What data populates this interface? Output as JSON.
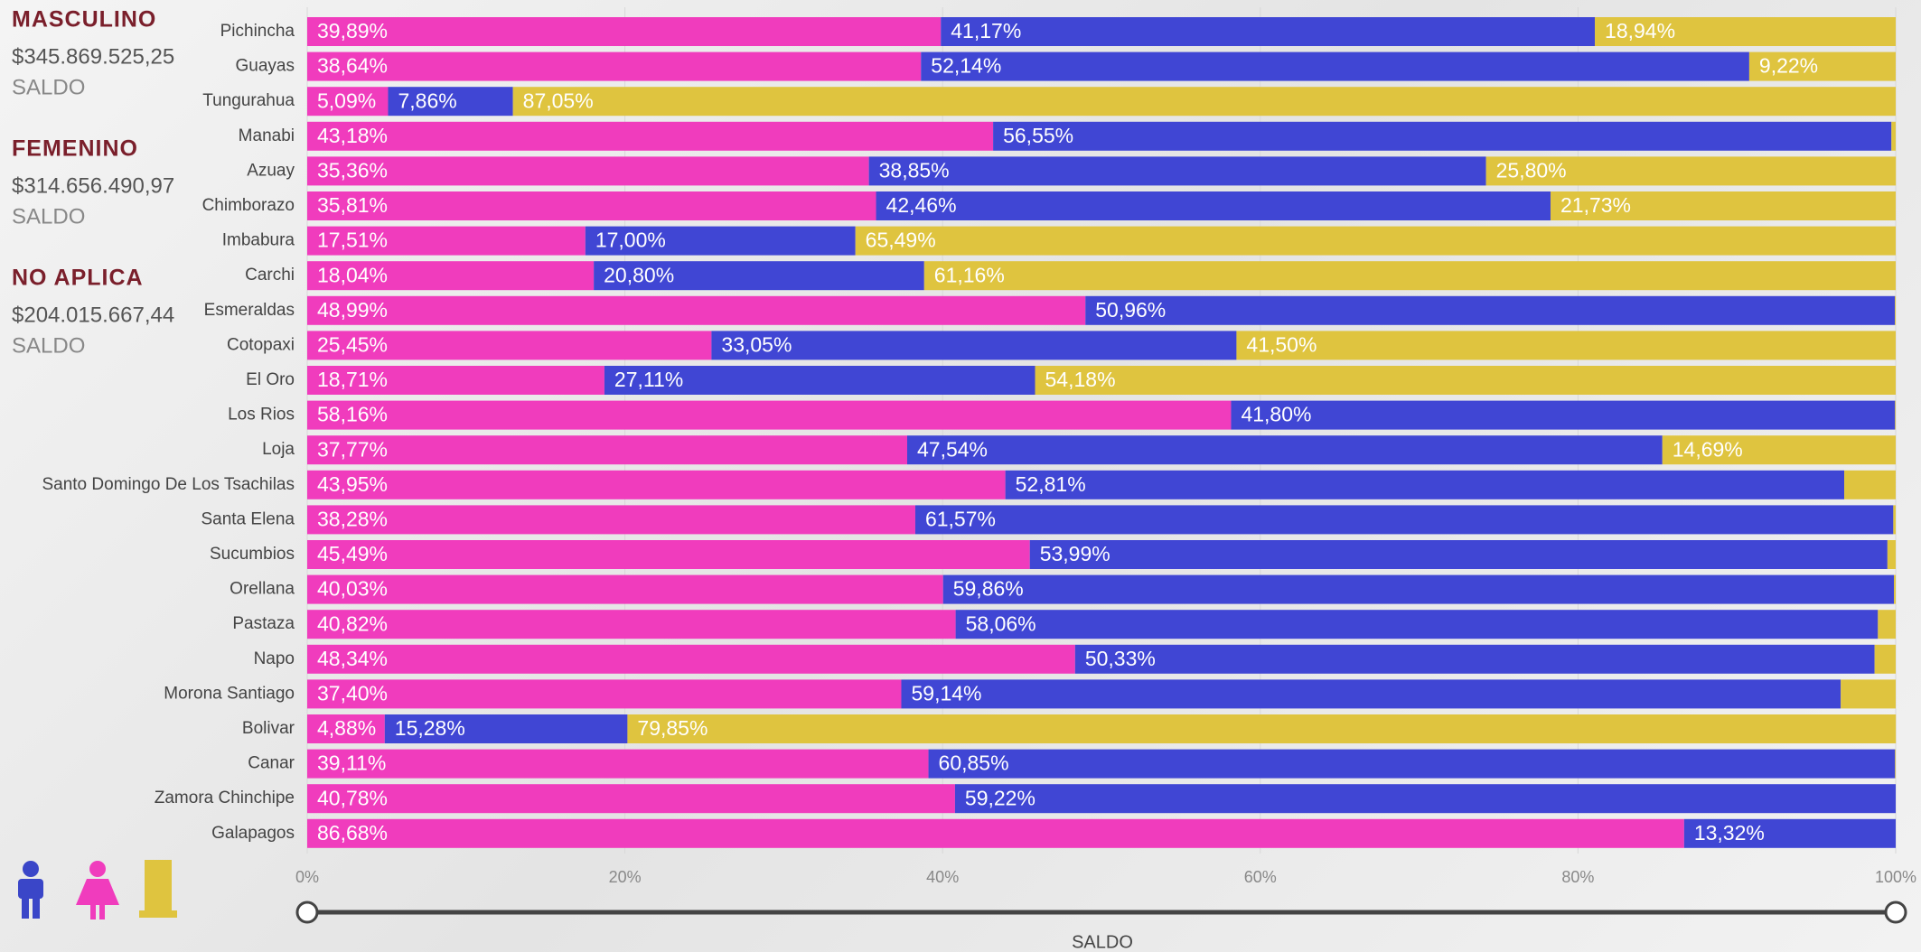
{
  "chart_data": {
    "type": "stacked_barh",
    "categories": [
      "Pichincha",
      "Guayas",
      "Tungurahua",
      "Manabi",
      "Azuay",
      "Chimborazo",
      "Imbabura",
      "Carchi",
      "Esmeraldas",
      "Cotopaxi",
      "El Oro",
      "Los Rios",
      "Loja",
      "Santo Domingo De Los Tsachilas",
      "Santa Elena",
      "Sucumbios",
      "Orellana",
      "Pastaza",
      "Napo",
      "Morona Santiago",
      "Bolivar",
      "Canar",
      "Zamora Chinchipe",
      "Galapagos"
    ],
    "series": [
      {
        "color": "#f03cbd",
        "values": [
          39.89,
          38.64,
          5.09,
          43.18,
          35.36,
          35.81,
          17.51,
          18.04,
          48.99,
          25.45,
          18.71,
          58.16,
          37.77,
          43.95,
          38.28,
          45.49,
          40.03,
          40.82,
          48.34,
          37.4,
          4.88,
          39.11,
          40.78,
          86.68
        ],
        "value_labels": [
          "39,89%",
          "38,64%",
          "5,09%",
          "43,18%",
          "35,36%",
          "35,81%",
          "17,51%",
          "18,04%",
          "48,99%",
          "25,45%",
          "18,71%",
          "58,16%",
          "37,77%",
          "43,95%",
          "38,28%",
          "45,49%",
          "40,03%",
          "40,82%",
          "48,34%",
          "37,40%",
          "4,88%",
          "39,11%",
          "40,78%",
          "86,68%"
        ]
      },
      {
        "color": "#4046d4",
        "values": [
          41.17,
          52.14,
          7.86,
          56.55,
          38.85,
          42.46,
          17.0,
          20.8,
          50.96,
          33.05,
          27.11,
          41.8,
          47.54,
          52.81,
          61.57,
          53.99,
          59.86,
          58.06,
          50.33,
          59.14,
          15.28,
          60.85,
          59.22,
          13.32
        ],
        "value_labels": [
          "41,17%",
          "52,14%",
          "7,86%",
          "56,55%",
          "38,85%",
          "42,46%",
          "17,00%",
          "20,80%",
          "50,96%",
          "33,05%",
          "27,11%",
          "41,80%",
          "47,54%",
          "52,81%",
          "61,57%",
          "53,99%",
          "59,86%",
          "58,06%",
          "50,33%",
          "59,14%",
          "15,28%",
          "60,85%",
          "59,22%",
          "13,32%"
        ]
      },
      {
        "color": "#dfc43f",
        "values": [
          18.94,
          9.22,
          87.05,
          0.27,
          25.8,
          21.73,
          65.49,
          61.16,
          0.05,
          41.5,
          54.18,
          0.04,
          14.69,
          3.24,
          0.15,
          0.52,
          0.11,
          1.12,
          1.33,
          3.46,
          79.85,
          0.04,
          0,
          0
        ],
        "value_labels": [
          "18,94%",
          "9,22%",
          "87,05%",
          null,
          "25,80%",
          "21,73%",
          "65,49%",
          "61,16%",
          null,
          "41,50%",
          "54,18%",
          null,
          "14,69%",
          null,
          null,
          null,
          null,
          null,
          null,
          null,
          "79,85%",
          null,
          null,
          null
        ]
      }
    ],
    "xlim": [
      0,
      100
    ],
    "xticks": [
      {
        "value": 0,
        "label": "0%"
      },
      {
        "value": 20,
        "label": "20%"
      },
      {
        "value": 40,
        "label": "40%"
      },
      {
        "value": 60,
        "label": "60%"
      },
      {
        "value": 80,
        "label": "80%"
      },
      {
        "value": 100,
        "label": "100%"
      }
    ],
    "xlabel": "SALDO",
    "grid": true
  },
  "summary": [
    {
      "title": "MASCULINO",
      "amount": "$345.869.525,25",
      "label": "SALDO"
    },
    {
      "title": "FEMENINO",
      "amount": "$314.656.490,97",
      "label": "SALDO"
    },
    {
      "title": "NO APLICA",
      "amount": "$204.015.667,44",
      "label": "SALDO"
    }
  ]
}
